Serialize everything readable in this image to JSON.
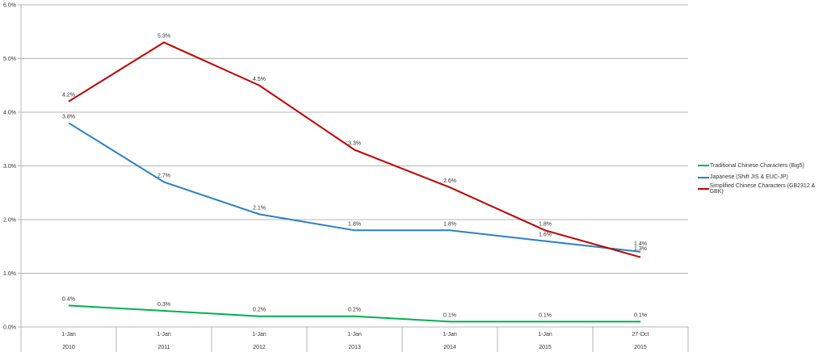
{
  "chart_data": {
    "type": "line",
    "categories": [
      {
        "day": "1-Jan",
        "year": "2010"
      },
      {
        "day": "1-Jan",
        "year": "2011"
      },
      {
        "day": "1-Jan",
        "year": "2012"
      },
      {
        "day": "1-Jan",
        "year": "2013"
      },
      {
        "day": "1-Jan",
        "year": "2014"
      },
      {
        "day": "1-Jan",
        "year": "2015"
      },
      {
        "day": "27-Oct",
        "year": "2015"
      }
    ],
    "ylim": [
      0,
      6
    ],
    "yticks": [
      "0.0%",
      "1.0%",
      "2.0%",
      "3.0%",
      "4.0%",
      "5.0%",
      "6.0%"
    ],
    "grid": true,
    "legend": "right",
    "series": [
      {
        "name": "Traditional Chinese Characters (Big5)",
        "color": "#00b050",
        "values": [
          0.4,
          0.3,
          0.2,
          0.2,
          0.1,
          0.1,
          0.1
        ],
        "labels": [
          "0.4%",
          "0.3%",
          "0.2%",
          "0.2%",
          "0.1%",
          "0.1%",
          "0.1%"
        ]
      },
      {
        "name": "Japanese (Shift JIS & EUC-JP)",
        "color": "#2a7fc9",
        "values": [
          3.8,
          2.7,
          2.1,
          1.8,
          1.8,
          1.6,
          1.4
        ],
        "labels": [
          "3.8%",
          "2.7%",
          "2.1%",
          "1.8%",
          "1.8%",
          "1.6%",
          "1.4%"
        ]
      },
      {
        "name": "Simplified Chinese Characters (GB2312 & GBK)",
        "color": "#c00000",
        "values": [
          4.2,
          5.3,
          4.5,
          3.3,
          2.6,
          1.8,
          1.3
        ],
        "labels": [
          "4.2%",
          "5.3%",
          "4.5%",
          "3.3%",
          "2.6%",
          "1.8%",
          "1.3%"
        ]
      }
    ]
  }
}
